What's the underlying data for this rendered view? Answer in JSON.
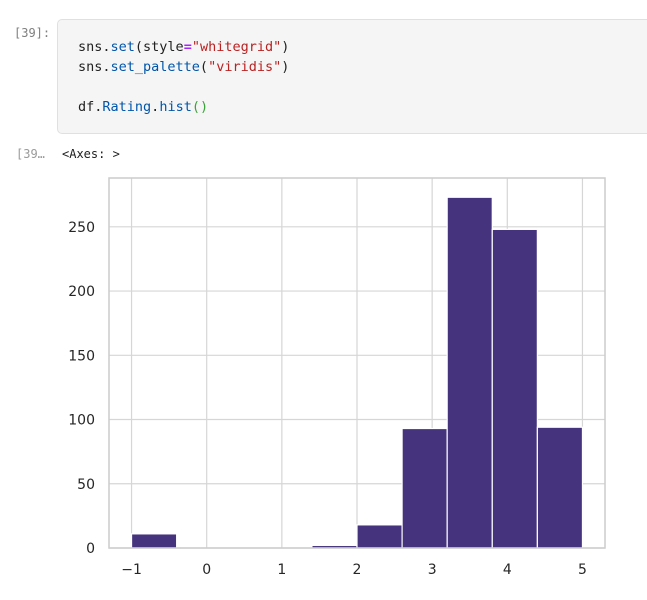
{
  "input_cell": {
    "prompt": "[39]:",
    "lines": [
      [
        {
          "t": "sns.",
          "c": ""
        },
        {
          "t": "set",
          "c": "fn"
        },
        {
          "t": "(style",
          "c": ""
        },
        {
          "t": "=",
          "c": "op"
        },
        {
          "t": "\"whitegrid\"",
          "c": "str"
        },
        {
          "t": ")",
          "c": ""
        }
      ],
      [
        {
          "t": "sns.",
          "c": ""
        },
        {
          "t": "set_palette",
          "c": "fn"
        },
        {
          "t": "(",
          "c": ""
        },
        {
          "t": "\"viridis\"",
          "c": "str"
        },
        {
          "t": ")",
          "c": ""
        }
      ],
      [],
      [
        {
          "t": "df.",
          "c": ""
        },
        {
          "t": "Rating",
          "c": "fn"
        },
        {
          "t": ".",
          "c": ""
        },
        {
          "t": "hist",
          "c": "fn"
        },
        {
          "t": "()",
          "c": "green"
        }
      ]
    ]
  },
  "output_cell": {
    "prompt": "[39…",
    "text": "<Axes: >"
  },
  "colors": {
    "bar_fill": "#45337d",
    "grid": "#d6d6d6",
    "axes_edge": "#cccccc"
  },
  "chart_data": {
    "type": "bar",
    "title": "",
    "xlabel": "",
    "ylabel": "",
    "grid": true,
    "xlim": [
      -1.3,
      5.3
    ],
    "ylim": [
      0,
      288
    ],
    "xticks": [
      "−1",
      "0",
      "1",
      "2",
      "3",
      "4",
      "5"
    ],
    "xtick_values": [
      -1,
      0,
      1,
      2,
      3,
      4,
      5
    ],
    "yticks": [
      "0",
      "50",
      "100",
      "150",
      "200",
      "250"
    ],
    "ytick_values": [
      0,
      50,
      100,
      150,
      200,
      250
    ],
    "bin_edges": [
      -1.0,
      -0.4,
      0.2,
      0.8,
      1.4,
      2.0,
      2.6,
      3.2,
      3.8,
      4.4,
      5.0
    ],
    "counts": [
      11,
      0,
      0,
      0,
      2,
      18,
      93,
      273,
      248,
      94
    ]
  }
}
